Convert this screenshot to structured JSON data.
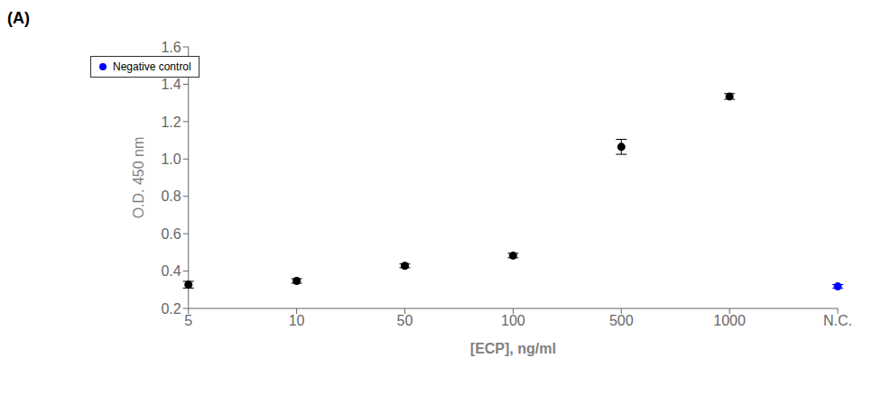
{
  "chart_data": {
    "type": "scatter",
    "title": "(A)",
    "x_label": "[ECP], ng/ml",
    "y_label": "O.D. 450 nm",
    "categories": [
      "5",
      "10",
      "50",
      "100",
      "500",
      "1000",
      "N.C."
    ],
    "series": [
      {
        "color": "black",
        "values": [
          0.327,
          0.347,
          0.428,
          0.483,
          1.065,
          1.335,
          null
        ],
        "errors": [
          0.018,
          0.012,
          0.01,
          0.012,
          0.04,
          0.015,
          null
        ]
      },
      {
        "name": "Negative control",
        "color": "blue",
        "values": [
          null,
          null,
          null,
          null,
          null,
          null,
          0.318
        ],
        "errors": [
          null,
          null,
          null,
          null,
          null,
          null,
          0.01
        ]
      }
    ],
    "ylim": [
      0.2,
      1.6
    ],
    "yticks": [
      0.2,
      0.4,
      0.6,
      0.8,
      {
        "value": 1.0,
        "label": "1.0"
      },
      1.2,
      1.4,
      1.6
    ],
    "grid": false,
    "legend": "upper left"
  }
}
